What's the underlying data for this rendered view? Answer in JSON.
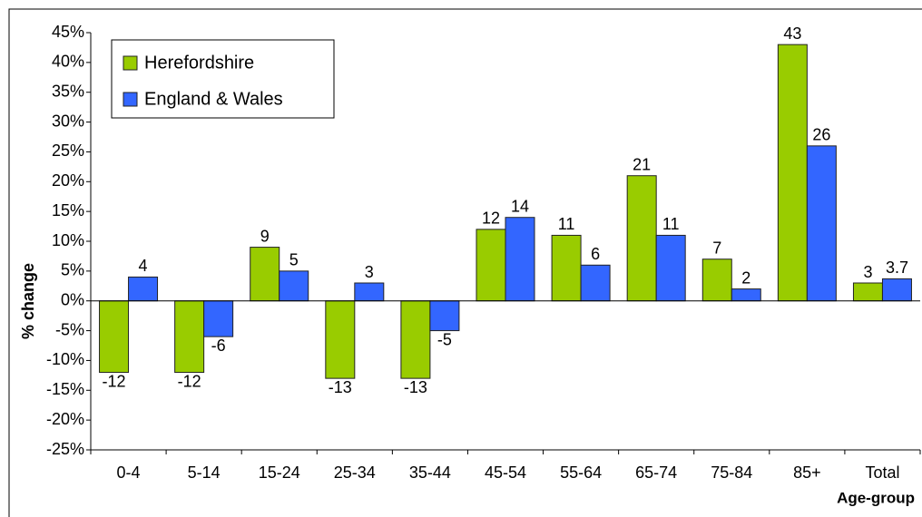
{
  "chart_data": {
    "type": "bar",
    "y_label": "% change",
    "x_label": "Age-group",
    "categories": [
      "0-4",
      "5-14",
      "15-24",
      "25-34",
      "35-44",
      "45-54",
      "55-64",
      "65-74",
      "75-84",
      "85+",
      "Total"
    ],
    "series": [
      {
        "name": "Herefordshire",
        "color": "#99cc00",
        "values": [
          -12,
          -12,
          9,
          -13,
          -13,
          12,
          11,
          21,
          7,
          43,
          3
        ]
      },
      {
        "name": "England & Wales",
        "color": "#3366ff",
        "values": [
          4,
          -6,
          5,
          3,
          -5,
          14,
          6,
          11,
          2,
          26,
          3.7
        ]
      }
    ],
    "ylim": [
      -25,
      45
    ],
    "yticks": [
      {
        "value": -25,
        "label": "-25%"
      },
      {
        "value": -20,
        "label": "-20%"
      },
      {
        "value": -15,
        "label": "-15%"
      },
      {
        "value": -10,
        "label": "-10%"
      },
      {
        "value": -5,
        "label": "-5%"
      },
      {
        "value": 0,
        "label": "0%"
      },
      {
        "value": 5,
        "label": "5%"
      },
      {
        "value": 10,
        "label": "10%"
      },
      {
        "value": 15,
        "label": "15%"
      },
      {
        "value": 20,
        "label": "20%"
      },
      {
        "value": 25,
        "label": "25%"
      },
      {
        "value": 30,
        "label": "30%"
      },
      {
        "value": 35,
        "label": "35%"
      },
      {
        "value": 40,
        "label": "40%"
      },
      {
        "value": 45,
        "label": "45%"
      }
    ],
    "legend": "top-left",
    "grid": false
  }
}
